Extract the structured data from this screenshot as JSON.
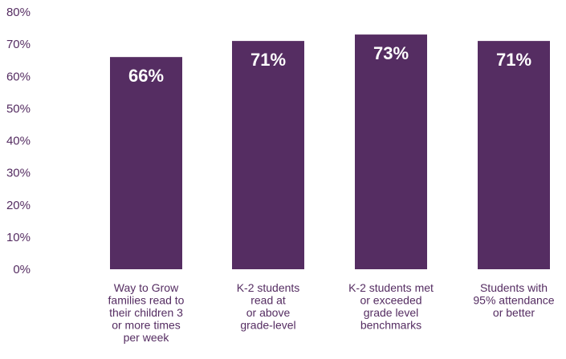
{
  "chart_data": {
    "type": "bar",
    "categories": [
      [
        "Way to Grow",
        "families read to",
        "their children 3",
        "or more times",
        "per week"
      ],
      [
        "K-2 students",
        "read at",
        "or above",
        "grade-level"
      ],
      [
        "K-2 students met",
        "or exceeded",
        "grade level",
        "benchmarks"
      ],
      [
        "Students with",
        "95% attendance",
        "or better"
      ]
    ],
    "values": [
      66,
      71,
      73,
      71
    ],
    "data_labels": [
      "66%",
      "71%",
      "73%",
      "71%"
    ],
    "ylim": [
      0,
      80
    ],
    "yticks": [
      "0%",
      "10%",
      "20%",
      "30%",
      "40%",
      "50%",
      "60%",
      "70%",
      "80%"
    ],
    "grid": false,
    "legend": "none",
    "colors": {
      "bar": "#552D62",
      "label": "#ffffff",
      "tick": "#552D62",
      "category": "#552D62"
    }
  }
}
